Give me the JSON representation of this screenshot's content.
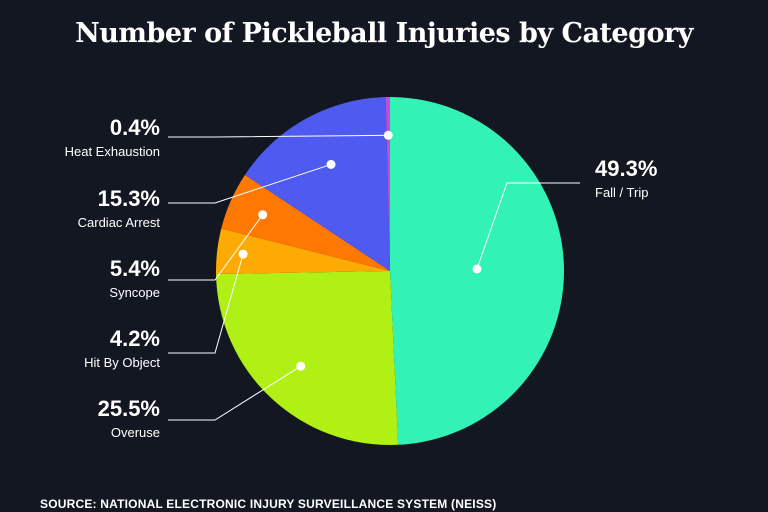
{
  "title": "Number of Pickleball Injuries by Category",
  "source": "SOURCE: NATIONAL ELECTRONIC INJURY SURVEILLANCE SYSTEM (NEISS)",
  "chart_data": {
    "type": "pie",
    "title": "Number of Pickleball Injuries by Category",
    "slices": [
      {
        "name": "Fall / Trip",
        "value": 49.3,
        "label": "49.3%",
        "color": "#33f2b6"
      },
      {
        "name": "Overuse",
        "value": 25.5,
        "label": "25.5%",
        "color": "#b1f014"
      },
      {
        "name": "Hit By Object",
        "value": 4.2,
        "label": "4.2%",
        "color": "#fdaa03"
      },
      {
        "name": "Syncope",
        "value": 5.4,
        "label": "5.4%",
        "color": "#fe7804"
      },
      {
        "name": "Cardiac Arrest",
        "value": 15.3,
        "label": "15.3%",
        "color": "#4f5bf0"
      },
      {
        "name": "Heat Exhaustion",
        "value": 0.4,
        "label": "0.4%",
        "color": "#c44bdc"
      }
    ],
    "legend": "none"
  }
}
